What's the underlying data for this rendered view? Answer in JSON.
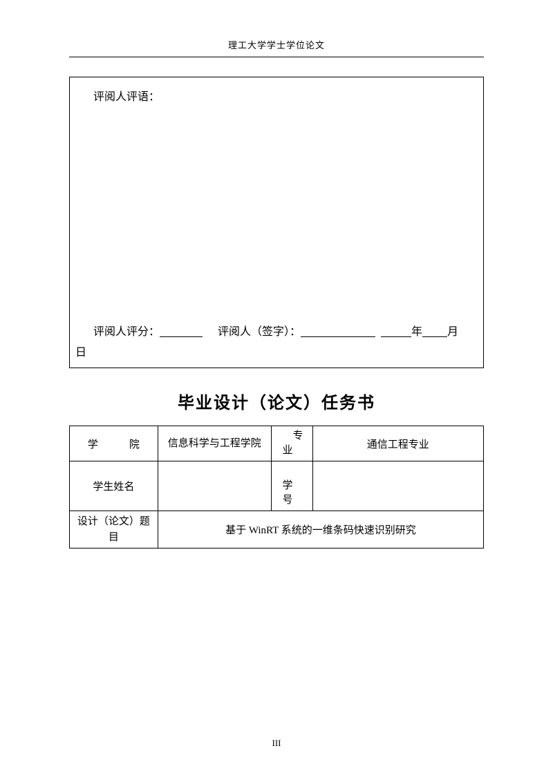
{
  "header": {
    "text": "理工大学学士学位论文"
  },
  "reviewBox": {
    "title": "评阅人评语：",
    "scoreLabel": "评阅人评分：",
    "signLabel": "评阅人（签字）：",
    "yearLabel": "年",
    "monthLabel": "月",
    "dayLabel": "日"
  },
  "sectionTitle": "毕业设计（论文）任务书",
  "table": {
    "collegeLabel": "学院",
    "collegeLabelSpaced": "学　　　院",
    "collegeValue": "信息科学与工程学院",
    "majorLabel": "专业",
    "majorValue": "通信工程专业",
    "studentNameLabel": "学生姓名",
    "studentNameValue": "",
    "studentIdLabel": "学号",
    "studentIdValue": "",
    "topicLabel": "设计（论文）题目",
    "topicValue": "基于 WinRT 系统的一维条码快速识别研究"
  },
  "pageNumber": "III",
  "styling": {
    "pageWidth": 800,
    "pageHeight": 1132,
    "backgroundColor": "#ffffff",
    "textColor": "#000000",
    "borderColor": "#000000",
    "headerFontSize": 13,
    "bodyFontSize": 16,
    "titleFontSize": 24,
    "tableFontSize": 15,
    "fontFamilyBody": "SimSun",
    "fontFamilyTitle": "SimHei"
  }
}
